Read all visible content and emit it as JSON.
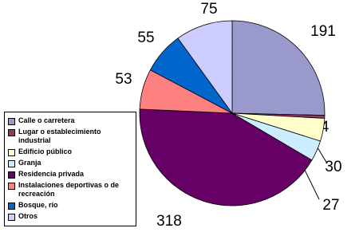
{
  "chart_data": {
    "type": "pie",
    "categories": [
      "Calle o carretera",
      "Lugar o establecimiento industrial",
      "Edificio público",
      "Granja",
      "Residencia privada",
      "Instalaciones deportivas o de recreación",
      "Bosque, río",
      "Otros"
    ],
    "values": [
      191,
      4,
      30,
      27,
      318,
      53,
      55,
      75
    ],
    "colors": [
      "#9999cc",
      "#993366",
      "#ffffcc",
      "#ccecff",
      "#660066",
      "#ff8080",
      "#0066cc",
      "#ccccff"
    ]
  }
}
